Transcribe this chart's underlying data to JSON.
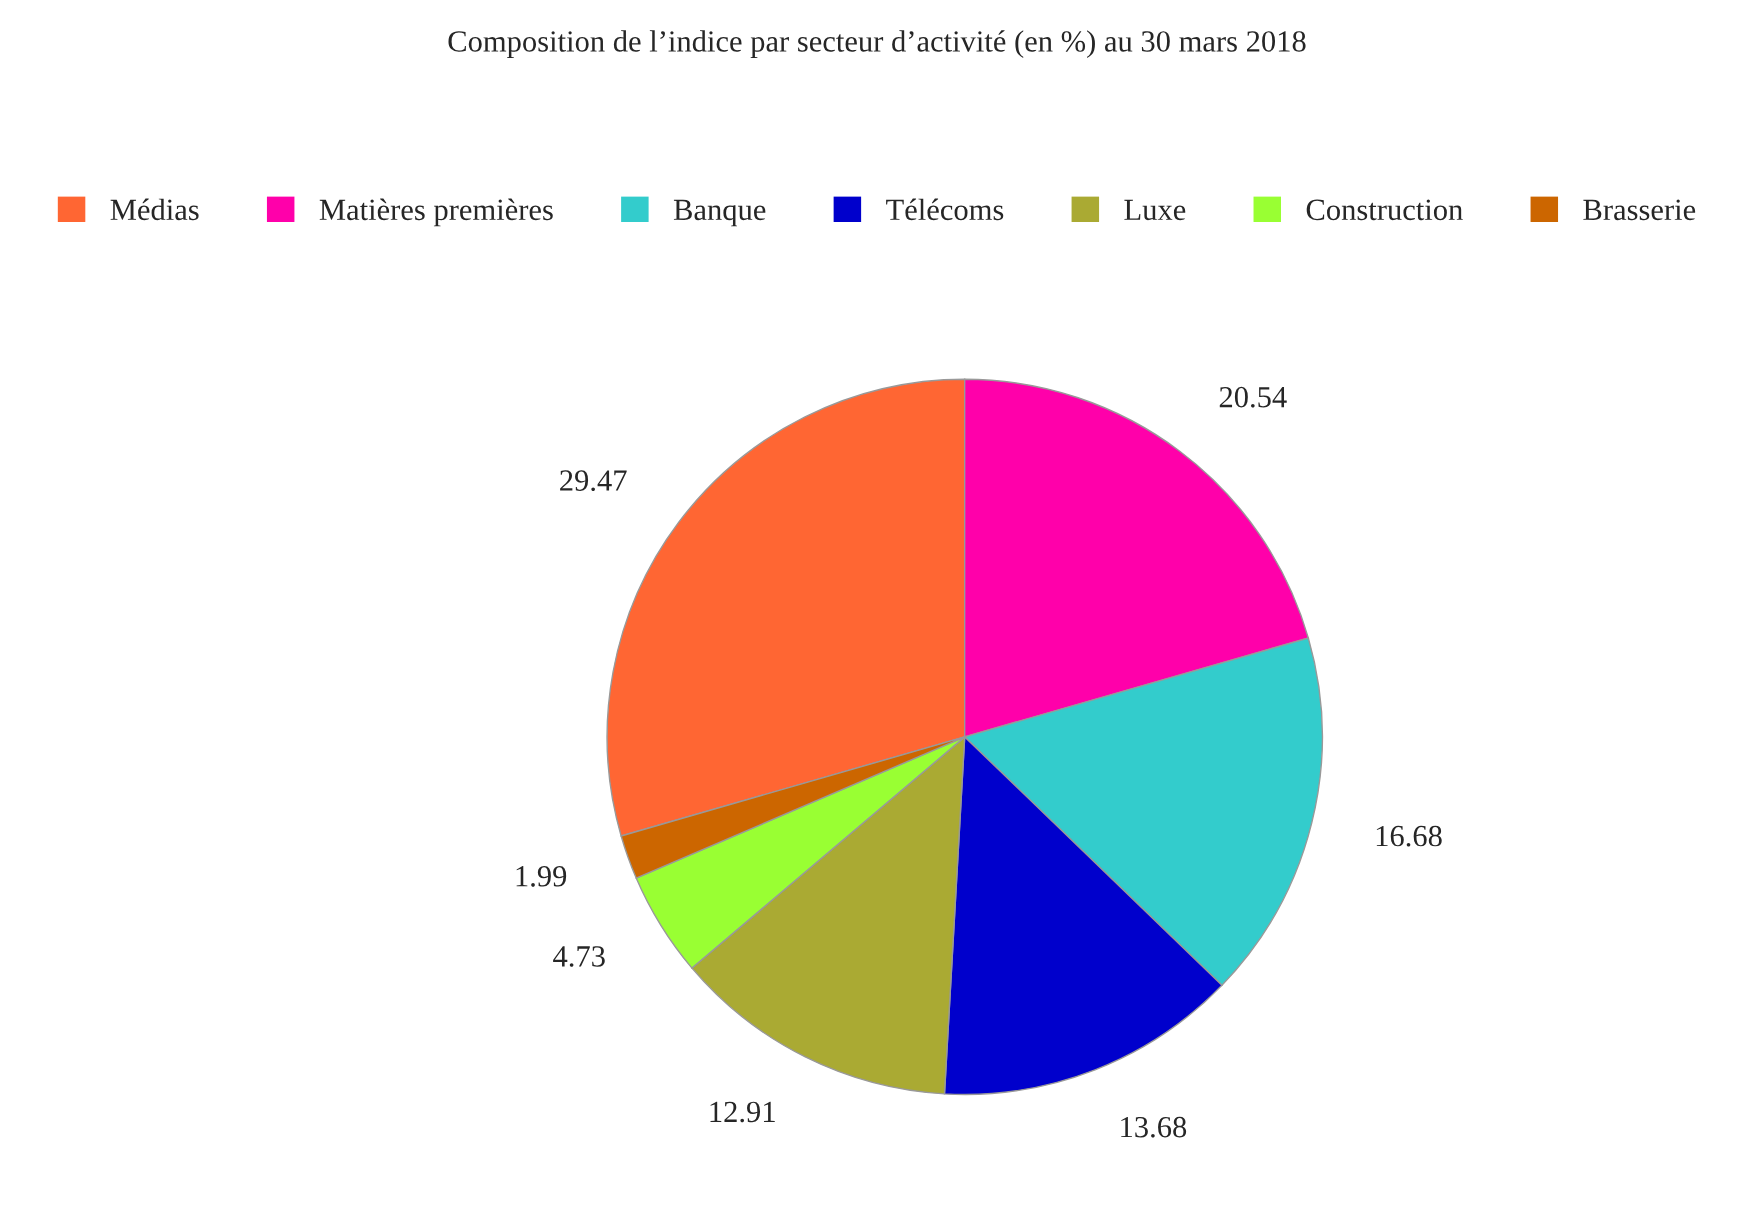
{
  "chart_data": {
    "type": "pie",
    "title": "Composition de l’indice par secteur d’activité (en %) au 30 mars 2018",
    "categories": [
      "Médias",
      "Matières premières",
      "Banque",
      "Télécoms",
      "Luxe",
      "Construction",
      "Brasserie"
    ],
    "values": [
      29.47,
      20.54,
      16.68,
      13.68,
      12.91,
      4.73,
      1.99
    ],
    "colors": [
      "#ff6633",
      "#ff00aa",
      "#33cccc",
      "#0000cc",
      "#aaaa33",
      "#99ff33",
      "#cc6600"
    ],
    "data_labels": true,
    "legend": "top"
  }
}
